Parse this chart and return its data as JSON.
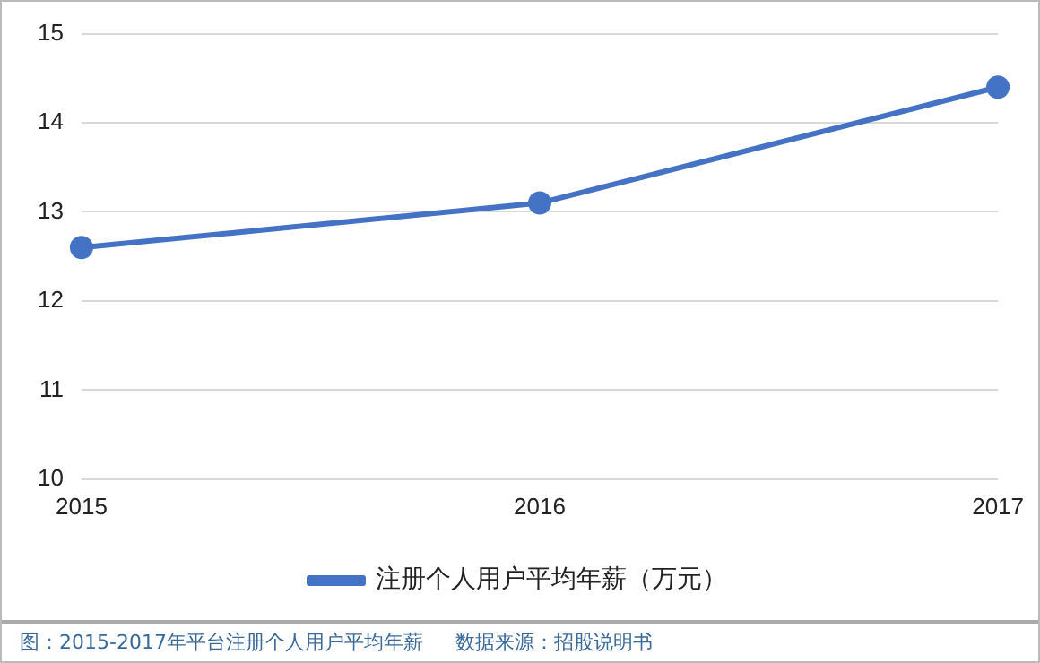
{
  "chart_data": {
    "type": "line",
    "categories": [
      "2015",
      "2016",
      "2017"
    ],
    "series": [
      {
        "name": "注册个人用户平均年薪（万元）",
        "color": "#4472c4",
        "values": [
          12.6,
          13.1,
          14.4
        ]
      }
    ],
    "ylim": [
      10,
      15
    ],
    "yticks": [
      10,
      11,
      12,
      13,
      14,
      15
    ],
    "grid": "y",
    "legend": "bottom",
    "marker": "circle",
    "line_style": "solid",
    "annotations": [
      "图：2015-2017年平台注册个人用户平均年薪",
      "数据来源：招股说明书"
    ]
  }
}
